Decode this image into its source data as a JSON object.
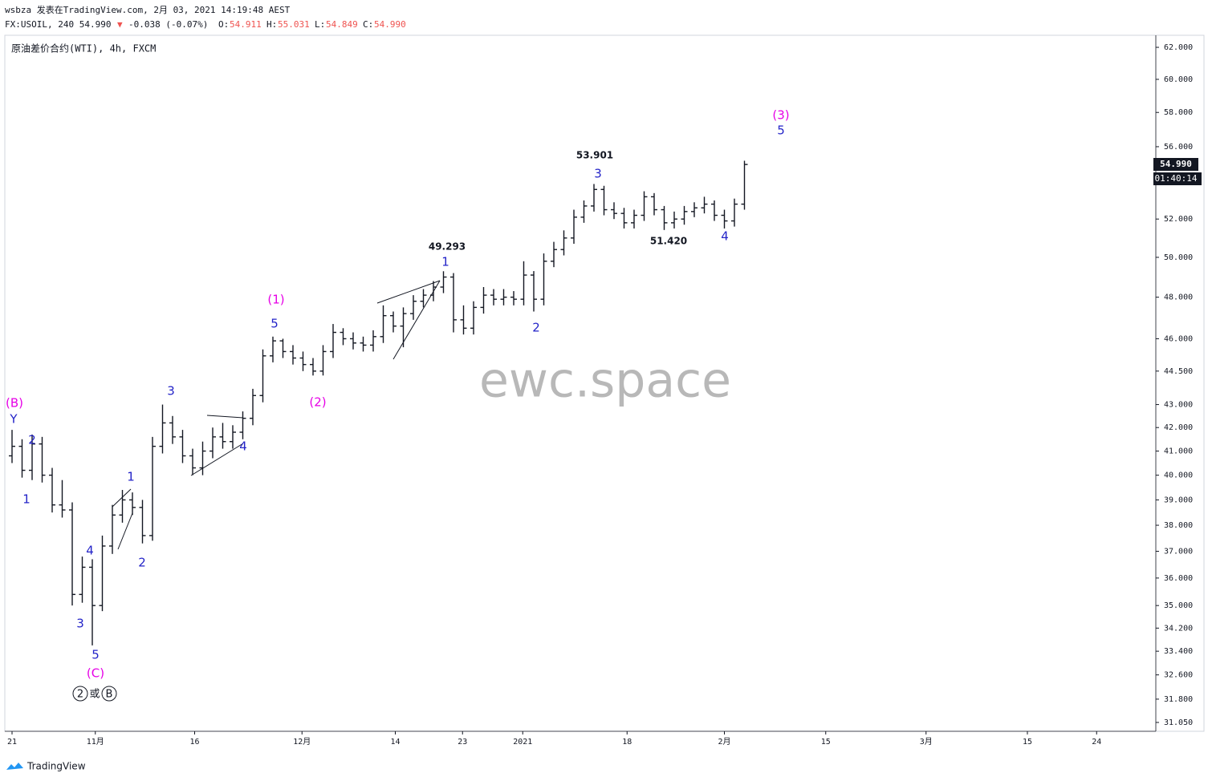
{
  "header": {
    "author_line": "wsbza 发表在TradingView.com, 2月 03, 2021 14:19:48 AEST",
    "symbol": "FX:USOIL, 240 54.990",
    "change": "-0.038 (-0.07%)",
    "ohlc": [
      {
        "key": "O:",
        "value": "54.911"
      },
      {
        "key": "H:",
        "value": "55.031"
      },
      {
        "key": "L:",
        "value": "54.849"
      },
      {
        "key": "C:",
        "value": "54.990"
      }
    ],
    "instrument": "原油差价合约(WTI), 4h, FXCM",
    "watermark": "ewc.space",
    "countdown": "01:40:14",
    "brand": "TradingView"
  },
  "chart_data": {
    "type": "ohlc",
    "log_scale": true,
    "grid": false,
    "color": "#131722",
    "x": [
      0,
      1,
      2,
      3,
      4,
      5,
      6,
      7,
      8,
      9,
      10,
      11,
      12,
      13,
      14,
      15,
      16,
      17,
      18,
      19,
      20,
      21,
      22,
      23,
      24,
      25,
      26,
      27,
      28,
      29,
      30,
      31,
      32,
      33,
      34,
      35,
      36,
      37,
      38,
      39,
      40,
      41,
      42,
      43,
      44,
      45,
      46,
      47,
      48,
      49,
      50,
      51,
      52,
      53,
      54,
      55,
      56,
      57,
      58,
      59,
      60,
      61,
      62,
      63,
      64,
      65,
      66,
      67,
      68,
      69,
      70,
      71,
      72,
      73
    ],
    "open": [
      40.8,
      41.2,
      40.2,
      41.3,
      40.0,
      38.8,
      38.6,
      35.4,
      36.4,
      35.0,
      37.2,
      38.4,
      39.0,
      38.7,
      37.6,
      41.2,
      42.2,
      41.6,
      40.8,
      40.3,
      41.0,
      41.6,
      41.4,
      41.8,
      42.4,
      43.4,
      45.2,
      45.9,
      45.4,
      45.1,
      44.8,
      44.5,
      45.4,
      46.3,
      46.0,
      45.8,
      45.7,
      46.1,
      47.1,
      46.6,
      47.2,
      47.8,
      48.1,
      48.5,
      49.0,
      46.9,
      46.5,
      47.5,
      48.1,
      47.9,
      48.0,
      47.9,
      49.1,
      47.9,
      49.8,
      50.4,
      51.0,
      52.1,
      52.7,
      53.6,
      52.5,
      52.3,
      51.8,
      52.2,
      53.2,
      52.5,
      51.8,
      52.0,
      52.4,
      52.6,
      52.8,
      52.2,
      51.9,
      52.8
    ],
    "high": [
      41.9,
      41.5,
      41.7,
      41.6,
      40.3,
      39.8,
      38.9,
      36.8,
      36.7,
      37.6,
      38.8,
      39.4,
      39.3,
      39.0,
      41.6,
      43.0,
      42.5,
      41.9,
      41.1,
      41.4,
      42.0,
      42.2,
      42.1,
      42.7,
      43.7,
      45.5,
      46.1,
      46.0,
      45.7,
      45.4,
      45.1,
      45.7,
      46.7,
      46.5,
      46.3,
      46.1,
      46.4,
      47.6,
      47.3,
      47.5,
      48.1,
      48.4,
      48.8,
      49.293,
      49.2,
      47.6,
      47.8,
      48.5,
      48.4,
      48.4,
      48.3,
      49.8,
      49.3,
      50.2,
      50.8,
      51.4,
      52.5,
      53.0,
      53.901,
      53.8,
      52.9,
      52.6,
      52.5,
      53.5,
      53.4,
      52.7,
      52.4,
      52.7,
      52.9,
      53.2,
      53.0,
      52.5,
      53.1,
      55.2
    ],
    "low": [
      40.5,
      39.9,
      39.8,
      39.7,
      38.5,
      38.3,
      35.0,
      35.1,
      33.6,
      34.8,
      36.9,
      38.1,
      38.4,
      37.3,
      37.4,
      40.9,
      41.3,
      40.5,
      40.0,
      40.0,
      40.7,
      41.1,
      41.1,
      41.5,
      42.1,
      43.1,
      44.9,
      45.1,
      44.8,
      44.5,
      44.3,
      44.3,
      45.1,
      45.7,
      45.5,
      45.4,
      45.4,
      45.8,
      46.3,
      45.6,
      46.9,
      47.5,
      47.8,
      48.2,
      46.3,
      46.2,
      46.2,
      47.2,
      47.6,
      47.6,
      47.6,
      47.6,
      47.3,
      47.6,
      49.5,
      50.1,
      50.7,
      51.8,
      52.4,
      52.2,
      52.0,
      51.5,
      51.5,
      51.9,
      52.2,
      51.42,
      51.5,
      51.7,
      52.1,
      52.3,
      51.9,
      51.5,
      51.6,
      52.5
    ],
    "close": [
      41.2,
      40.2,
      41.3,
      40.0,
      38.8,
      38.6,
      35.4,
      36.4,
      35.0,
      37.2,
      38.4,
      39.0,
      38.7,
      37.6,
      41.2,
      42.2,
      41.6,
      40.8,
      40.3,
      41.0,
      41.6,
      41.4,
      41.8,
      42.4,
      43.4,
      45.2,
      45.9,
      45.4,
      45.1,
      44.8,
      44.5,
      45.4,
      46.3,
      46.0,
      45.8,
      45.7,
      46.1,
      47.1,
      46.6,
      47.2,
      47.8,
      48.1,
      48.5,
      49.0,
      46.9,
      46.5,
      47.5,
      48.1,
      47.9,
      48.0,
      47.9,
      49.1,
      47.9,
      49.8,
      50.4,
      51.0,
      52.1,
      52.7,
      53.6,
      52.5,
      52.3,
      51.8,
      52.2,
      53.2,
      52.5,
      51.8,
      52.0,
      52.4,
      52.6,
      52.8,
      52.2,
      51.9,
      52.8,
      54.99
    ],
    "last_price": {
      "value": 54.99,
      "label": "54.990"
    },
    "xlim": [
      -0.72,
      114
    ],
    "xticks": [
      {
        "value": 0,
        "label": "21"
      },
      {
        "value": 8.3,
        "label": "11月"
      },
      {
        "value": 18.2,
        "label": "16"
      },
      {
        "value": 28.9,
        "label": "12月"
      },
      {
        "value": 38.2,
        "label": "14"
      },
      {
        "value": 44.9,
        "label": "23"
      },
      {
        "value": 50.9,
        "label": "2021"
      },
      {
        "value": 61.3,
        "label": "18"
      },
      {
        "value": 71,
        "label": "2月"
      },
      {
        "value": 81.1,
        "label": "15"
      },
      {
        "value": 91.1,
        "label": "3月"
      },
      {
        "value": 101.2,
        "label": "15"
      },
      {
        "value": 108.1,
        "label": "24"
      }
    ],
    "ylim": [
      30.77,
      62.77
    ],
    "yticks": [
      {
        "value": 31.05,
        "label": "31.050"
      },
      {
        "value": 31.8,
        "label": "31.800"
      },
      {
        "value": 32.6,
        "label": "32.600"
      },
      {
        "value": 33.4,
        "label": "33.400"
      },
      {
        "value": 34.2,
        "label": "34.200"
      },
      {
        "value": 35,
        "label": "35.000"
      },
      {
        "value": 36,
        "label": "36.000"
      },
      {
        "value": 37,
        "label": "37.000"
      },
      {
        "value": 38,
        "label": "38.000"
      },
      {
        "value": 39,
        "label": "39.000"
      },
      {
        "value": 40,
        "label": "40.000"
      },
      {
        "value": 41,
        "label": "41.000"
      },
      {
        "value": 42,
        "label": "42.000"
      },
      {
        "value": 43,
        "label": "43.000"
      },
      {
        "value": 44.5,
        "label": "44.500"
      },
      {
        "value": 46,
        "label": "46.000"
      },
      {
        "value": 48,
        "label": "48.000"
      },
      {
        "value": 50,
        "label": "50.000"
      },
      {
        "value": 52,
        "label": "52.000"
      },
      {
        "value": 56,
        "label": "56.000"
      },
      {
        "value": 58,
        "label": "58.000"
      },
      {
        "value": 60,
        "label": "60.000"
      },
      {
        "value": 62,
        "label": "62.000"
      }
    ],
    "annotations": [
      {
        "text": "(B)",
        "color": "#e600e6"
      },
      {
        "text": "Y",
        "color": "#2424c8"
      },
      {
        "text": "2",
        "color": "#2424c8"
      },
      {
        "text": "1",
        "color": "#2424c8"
      },
      {
        "text": "4",
        "color": "#2424c8"
      },
      {
        "text": "3",
        "color": "#2424c8"
      },
      {
        "text": "5",
        "color": "#2424c8"
      },
      {
        "text": "(C)",
        "color": "#e600e6"
      },
      {
        "text": "1",
        "color": "#2424c8"
      },
      {
        "text": "2",
        "color": "#2424c8"
      },
      {
        "text": "3",
        "color": "#2424c8"
      },
      {
        "text": "4",
        "color": "#2424c8"
      },
      {
        "text": "5",
        "color": "#2424c8"
      },
      {
        "text": "(1)",
        "color": "#e600e6"
      },
      {
        "text": "(2)",
        "color": "#e600e6"
      },
      {
        "text": "49.293",
        "color": "#131722"
      },
      {
        "text": "1",
        "color": "#2424c8"
      },
      {
        "text": "2",
        "color": "#2424c8"
      },
      {
        "text": "53.901",
        "color": "#131722"
      },
      {
        "text": "3",
        "color": "#2424c8"
      },
      {
        "text": "51.420",
        "color": "#131722"
      },
      {
        "text": "4",
        "color": "#2424c8"
      },
      {
        "text": "(3)",
        "color": "#e600e6"
      },
      {
        "text": "5",
        "color": "#2424c8"
      }
    ],
    "circled": [
      "2",
      "或",
      "B"
    ]
  }
}
